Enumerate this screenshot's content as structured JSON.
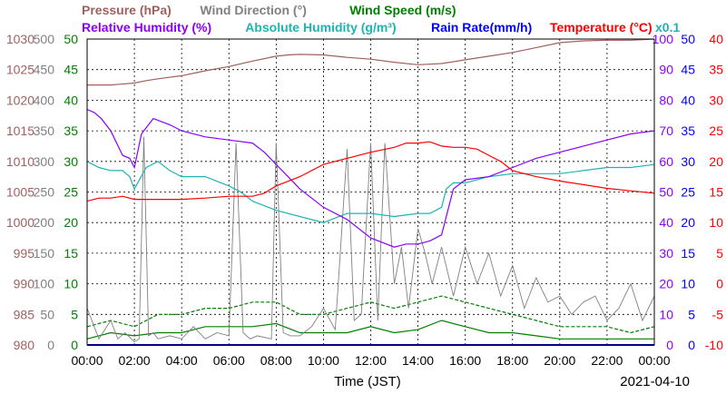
{
  "chart_data": {
    "type": "line",
    "legend_row1": [
      {
        "key": "pressure",
        "text": "Pressure (hPa)",
        "color": "#a06060"
      },
      {
        "key": "wind_direction",
        "text": "Wind Direction (°)",
        "color": "#808080"
      },
      {
        "key": "wind_speed",
        "text": "Wind Speed (m/s)",
        "color": "#008000"
      }
    ],
    "legend_row2": [
      {
        "key": "relative_humidity",
        "text": "Relative Humidity (%)",
        "color": "#8a00ff"
      },
      {
        "key": "absolute_humidity",
        "text": "Absolute Humidity (g/m³)",
        "color": "#1fb3b3"
      },
      {
        "key": "rain_rate",
        "text": "Rain Rate(mm/h)",
        "color": "#0000ff"
      },
      {
        "key": "temperature",
        "text": "Temperature (°C)",
        "color": "#ff0000"
      }
    ],
    "abs_humidity_scale_note": "x0.1",
    "xlabel": "Time (JST)",
    "date": "2021-04-10",
    "x_ticks": [
      "00:00",
      "02:00",
      "04:00",
      "06:00",
      "08:00",
      "10:00",
      "12:00",
      "14:00",
      "16:00",
      "18:00",
      "20:00",
      "22:00",
      "00:00"
    ],
    "axes": {
      "pressure": {
        "color": "#a06060",
        "ticks": [
          "1030",
          "1025",
          "1020",
          "1015",
          "1010",
          "1005",
          "1000",
          "995",
          "990",
          "985",
          "980"
        ],
        "range": [
          980,
          1030
        ]
      },
      "wind_direction": {
        "color": "#808080",
        "ticks": [
          "500",
          "450",
          "400",
          "350",
          "300",
          "250",
          "200",
          "150",
          "100",
          "50",
          "0"
        ],
        "range": [
          0,
          500
        ]
      },
      "wind_speed": {
        "color": "#008000",
        "ticks": [
          "50",
          "45",
          "40",
          "35",
          "30",
          "25",
          "20",
          "15",
          "10",
          "5",
          "0"
        ],
        "range": [
          0,
          50
        ]
      },
      "humidity": {
        "color": "#8a00ff",
        "ticks": [
          "100",
          "90",
          "80",
          "70",
          "60",
          "50",
          "40",
          "30",
          "20",
          "10",
          "0"
        ],
        "range": [
          0,
          100
        ]
      },
      "rain_rate": {
        "color": "#0000ff",
        "ticks": [
          "50",
          "45",
          "40",
          "35",
          "30",
          "25",
          "20",
          "15",
          "10",
          "5",
          "0"
        ],
        "range": [
          0,
          50
        ]
      },
      "temperature": {
        "color": "#ff0000",
        "ticks": [
          "40",
          "35",
          "30",
          "25",
          "20",
          "15",
          "10",
          "5",
          "0",
          "-5",
          "-10"
        ],
        "range": [
          -10,
          40
        ]
      }
    },
    "x_range_hours": [
      0,
      24
    ],
    "series": [
      {
        "name": "Pressure (hPa)",
        "color": "#a06060",
        "axis": "pressure",
        "x": [
          0,
          1,
          2,
          2.5,
          3,
          4,
          5,
          6,
          7,
          8,
          8.5,
          9,
          10,
          11,
          12,
          13,
          14,
          15,
          16,
          17,
          18,
          19,
          20,
          21,
          22,
          23,
          24
        ],
        "y": [
          1022.5,
          1022.5,
          1022.8,
          1023.2,
          1023.5,
          1024,
          1024.8,
          1025.5,
          1026.4,
          1027.2,
          1027.4,
          1027.5,
          1027.4,
          1027,
          1026.7,
          1026.2,
          1025.8,
          1026,
          1026.6,
          1027.2,
          1027.8,
          1028.6,
          1029.4,
          1029.7,
          1029.8,
          1029.8,
          1030
        ]
      },
      {
        "name": "Relative Humidity (%)",
        "color": "#8a00ff",
        "axis": "humidity",
        "x": [
          0,
          0.3,
          0.6,
          1,
          1.5,
          1.8,
          2,
          2.3,
          2.8,
          3.5,
          4,
          5,
          6,
          7,
          7.5,
          8,
          8.5,
          9,
          10,
          11,
          12,
          13,
          13.5,
          14,
          14.5,
          15,
          15.3,
          15.5,
          16,
          17,
          18,
          19,
          20,
          21,
          22,
          23,
          24
        ],
        "y": [
          77,
          76,
          74,
          70,
          62,
          61,
          58,
          69,
          74,
          72,
          70,
          68,
          67,
          66,
          63,
          59,
          55,
          51,
          45,
          41,
          35,
          32,
          33,
          33,
          34,
          36,
          45,
          51,
          54,
          55,
          58,
          61,
          63,
          65,
          67,
          69,
          70
        ]
      },
      {
        "name": "Absolute Humidity (x0.1 g/m³)",
        "color": "#1fb3b3",
        "axis": "humidity",
        "x": [
          0,
          0.5,
          1,
          1.5,
          1.8,
          2,
          2.5,
          3,
          3.5,
          4,
          5,
          6,
          6.5,
          7,
          8,
          9,
          10,
          11,
          12,
          13,
          14,
          14.5,
          15,
          15.2,
          15.5,
          16,
          17,
          18,
          19,
          20,
          21,
          22,
          23,
          24
        ],
        "y": [
          60,
          58,
          57,
          57,
          55,
          51,
          58,
          60,
          57,
          55,
          55,
          52,
          50,
          47,
          44,
          42,
          40,
          43,
          43,
          42,
          43,
          43,
          45,
          51,
          53,
          53,
          55,
          56,
          56,
          56,
          57,
          58,
          58,
          59
        ]
      },
      {
        "name": "Temperature (°C)",
        "color": "#ff0000",
        "axis": "temperature",
        "x": [
          0,
          0.5,
          1,
          1.5,
          2,
          3,
          4,
          5,
          6,
          6.5,
          7,
          7.5,
          8,
          9,
          10,
          11,
          12,
          13,
          13.5,
          14,
          14.5,
          15,
          15.5,
          16,
          16.5,
          17,
          17.5,
          18,
          19,
          20,
          21,
          22,
          23,
          24
        ],
        "y": [
          13.5,
          14,
          14,
          14.3,
          13.8,
          13.8,
          13.8,
          14,
          14.3,
          14.3,
          14.3,
          14.8,
          16,
          17.5,
          19.5,
          20.5,
          21.5,
          22.3,
          23,
          23,
          23.2,
          22.5,
          22.3,
          22.3,
          22,
          21,
          20,
          18.5,
          17.5,
          16.8,
          16.2,
          15.6,
          15.2,
          14.8
        ]
      },
      {
        "name": "Wind Direction (°)",
        "color": "#808080",
        "axis": "wind_direction",
        "x": [
          0,
          0.5,
          1,
          1.3,
          1.6,
          2,
          2.2,
          2.4,
          2.6,
          2.8,
          3,
          3.5,
          4,
          4.5,
          5,
          5.5,
          6,
          6.3,
          6.6,
          6.9,
          7.2,
          7.8,
          8,
          8.3,
          8.6,
          9,
          9.5,
          10,
          10.5,
          11,
          11.3,
          11.6,
          12,
          12.3,
          12.6,
          13,
          13.3,
          13.6,
          14,
          14.3,
          14.6,
          15,
          15.5,
          16,
          16.5,
          17,
          17.5,
          18,
          18.5,
          19,
          19.5,
          20,
          20.5,
          21,
          21.5,
          22,
          22.5,
          23,
          23.5,
          24
        ],
        "y": [
          60,
          10,
          40,
          10,
          20,
          5,
          10,
          340,
          15,
          20,
          10,
          15,
          10,
          30,
          10,
          20,
          15,
          330,
          20,
          10,
          15,
          10,
          330,
          20,
          15,
          15,
          30,
          60,
          25,
          320,
          40,
          50,
          330,
          40,
          330,
          100,
          160,
          60,
          190,
          150,
          100,
          160,
          80,
          160,
          100,
          150,
          80,
          130,
          60,
          110,
          70,
          80,
          50,
          70,
          80,
          40,
          60,
          100,
          40,
          80
        ]
      },
      {
        "name": "Wind Speed (m/s)",
        "color": "#008000",
        "axis": "wind_speed",
        "x": [
          0,
          1,
          2,
          3,
          4,
          5,
          6,
          7,
          8,
          9,
          10,
          11,
          12,
          13,
          14,
          15,
          16,
          17,
          18,
          19,
          20,
          21,
          22,
          23,
          24
        ],
        "y": [
          1,
          2,
          1.5,
          2,
          2,
          3,
          3,
          3,
          3.5,
          2,
          2,
          2,
          3,
          2,
          2.5,
          4,
          3,
          2,
          2,
          1.5,
          1,
          1,
          1,
          1,
          1
        ]
      },
      {
        "name": "Wind Speed gust (m/s)",
        "color": "#008000",
        "axis": "wind_speed",
        "x": [
          0,
          1,
          2,
          3,
          4,
          5,
          6,
          7,
          8,
          9,
          10,
          11,
          12,
          13,
          14,
          15,
          16,
          17,
          18,
          19,
          20,
          21,
          22,
          23,
          24
        ],
        "y": [
          3,
          4,
          3,
          5,
          5,
          6,
          6,
          7,
          7,
          5,
          5,
          6,
          7,
          6,
          7,
          8,
          7,
          6,
          5,
          4,
          3,
          3,
          3,
          2,
          3
        ]
      },
      {
        "name": "Rain Rate(mm/h)",
        "color": "#0000ff",
        "axis": "rain_rate",
        "x": [
          0,
          24
        ],
        "y": [
          0,
          0
        ]
      }
    ]
  }
}
